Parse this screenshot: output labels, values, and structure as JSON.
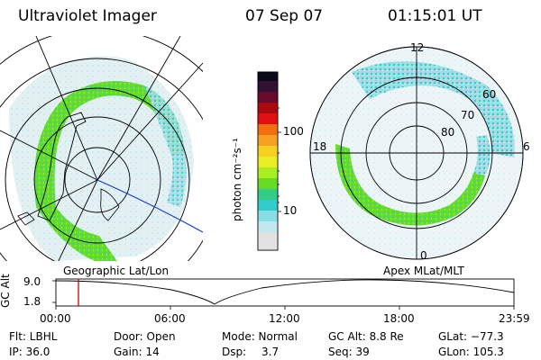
{
  "header": {
    "instrument": "Ultraviolet Imager",
    "date": "07 Sep 07",
    "time": "01:15:01 UT"
  },
  "left_panel": {
    "label": "Geographic Lat/Lon"
  },
  "right_panel": {
    "label": "Apex MLat/MLT",
    "mlt_labels": [
      "12",
      "18",
      "6",
      "0"
    ],
    "lat_labels": [
      "60",
      "70",
      "80"
    ]
  },
  "colorbar": {
    "unit_label": "photon cm⁻²s⁻¹",
    "ticks": [
      "100",
      "10"
    ]
  },
  "timeline": {
    "ylabel": "GC Alt",
    "y_ticks": [
      "9.0",
      "1.8"
    ],
    "x_ticks": [
      "00:00",
      "06:00",
      "12:00",
      "18:00",
      "23:59"
    ],
    "marker_color": "#d00000"
  },
  "footer": {
    "row1": [
      "Flt: LBHL",
      "Door: Open",
      "Mode: Normal",
      "GC Alt: 8.8 Re",
      "GLat: −77.3"
    ],
    "row2": [
      "IP: 36.0",
      "Gain: 14",
      "Dsp:",
      "3.7",
      "Seq: 39",
      "GLon: 105.3"
    ]
  },
  "colors": {
    "green": "#66dd22",
    "cyan": "#33cccc",
    "lightcyan": "#bfe9ef",
    "lightgray": "#dcdcdc"
  }
}
